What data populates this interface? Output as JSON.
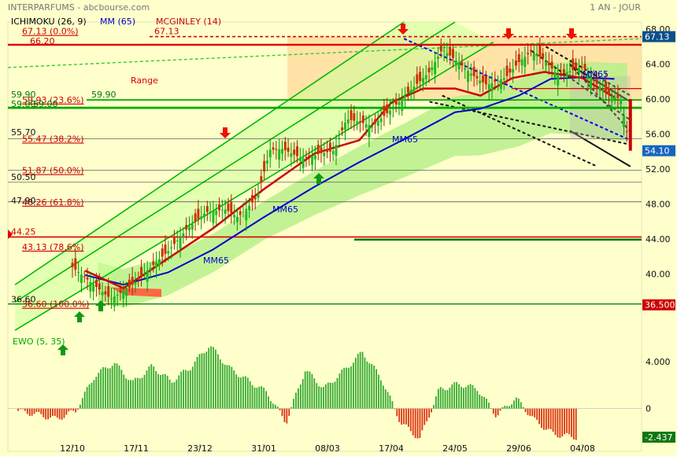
{
  "header": {
    "title": "INTERPARFUMS - abcbourse.com",
    "period": "1 AN - JOUR",
    "legend": [
      {
        "label": "ICHIMOKU (26, 9)",
        "color": "#000000"
      },
      {
        "label": "MM (65)",
        "color": "#0000cc"
      },
      {
        "label": "MCGINLEY (14)",
        "color": "#cc0000"
      }
    ]
  },
  "chart_data": [
    {
      "type": "line",
      "name": "price-panel",
      "ylim": [
        34.5,
        68.8
      ],
      "yticks": [
        "68.00",
        "64.00",
        "60.00",
        "56.00",
        "52.00",
        "48.00",
        "44.00",
        "40.00"
      ],
      "right_labels": [
        {
          "text": "67.13",
          "value": 67.13,
          "bg": "#0b4f8a"
        },
        {
          "text": "54.10",
          "value": 54.1,
          "bg": "#1565c0"
        },
        {
          "text": "36.500",
          "value": 36.5,
          "bg": "#cc0000"
        }
      ],
      "x_categories": [
        "12/10",
        "17/11",
        "23/12",
        "31/01",
        "08/03",
        "17/04",
        "24/05",
        "29/06",
        "04/08"
      ],
      "fibonacci": [
        {
          "label": "67.13 (0.0%)",
          "value": 67.13
        },
        {
          "label": "59.93 (23.6%)",
          "value": 59.93
        },
        {
          "label": "55.47 (38.2%)",
          "value": 55.47
        },
        {
          "label": "51.87 (50.0%)",
          "value": 51.87
        },
        {
          "label": "48.26 (61.8%)",
          "value": 48.26
        },
        {
          "label": "43.13 (78.6%)",
          "value": 43.13
        },
        {
          "label": "36.60 (100.0%)",
          "value": 36.6
        }
      ],
      "levels": [
        {
          "label": "66.20",
          "value": 66.2
        },
        {
          "label": "59.90",
          "value": 59.9
        },
        {
          "label": "59.00",
          "value": 59.0
        },
        {
          "label": "55.70",
          "value": 55.7
        },
        {
          "label": "50.50",
          "value": 50.5
        },
        {
          "label": "47.90",
          "value": 47.9
        },
        {
          "label": "44.25",
          "value": 44.25
        },
        {
          "label": "36.60",
          "value": 36.6
        }
      ],
      "inline_labels": [
        "67.13",
        "59.90",
        "59.00"
      ],
      "annotations": {
        "range": "Range",
        "mm65": "MM65"
      },
      "series": [
        {
          "name": "MM (65)",
          "color": "#0000cc",
          "points": [
            [
              0.2,
              39.9
            ],
            [
              0.8,
              38.8
            ],
            [
              1.5,
              40.2
            ],
            [
              2.2,
              42.8
            ],
            [
              3.0,
              46.5
            ],
            [
              3.8,
              50.0
            ],
            [
              4.5,
              52.8
            ],
            [
              5.2,
              55.4
            ],
            [
              6.0,
              58.5
            ],
            [
              6.4,
              58.9
            ],
            [
              7.0,
              60.4
            ],
            [
              7.5,
              62.3
            ],
            [
              8.0,
              62.5
            ],
            [
              8.5,
              62.3
            ]
          ]
        },
        {
          "name": "MCGINLEY (14)",
          "color": "#cc0000",
          "points": [
            [
              0.2,
              40.4
            ],
            [
              0.8,
              38.4
            ],
            [
              1.5,
              41.8
            ],
            [
              2.2,
              45.2
            ],
            [
              3.0,
              49.7
            ],
            [
              3.8,
              53.8
            ],
            [
              4.5,
              55.3
            ],
            [
              5.0,
              59.6
            ],
            [
              5.5,
              61.2
            ],
            [
              6.0,
              61.2
            ],
            [
              6.4,
              60.4
            ],
            [
              6.9,
              62.4
            ],
            [
              7.4,
              63.1
            ],
            [
              8.0,
              62.4
            ],
            [
              8.5,
              60.2
            ]
          ]
        },
        {
          "name": "Close",
          "color": "#009900",
          "points": [
            [
              0.0,
              40.8
            ],
            [
              0.3,
              39.0
            ],
            [
              0.6,
              37.2
            ],
            [
              0.9,
              38.5
            ],
            [
              1.2,
              40.6
            ],
            [
              1.5,
              42.6
            ],
            [
              1.8,
              45.2
            ],
            [
              2.1,
              47.1
            ],
            [
              2.4,
              47.4
            ],
            [
              2.6,
              46.5
            ],
            [
              2.9,
              48.8
            ],
            [
              3.1,
              54.2
            ],
            [
              3.3,
              54.3
            ],
            [
              3.6,
              53.2
            ],
            [
              3.9,
              53.8
            ],
            [
              4.1,
              54.1
            ],
            [
              4.3,
              57.7
            ],
            [
              4.5,
              57.4
            ],
            [
              4.7,
              56.9
            ],
            [
              5.0,
              58.8
            ],
            [
              5.3,
              61.0
            ],
            [
              5.6,
              63.1
            ],
            [
              5.8,
              65.7
            ],
            [
              6.1,
              63.9
            ],
            [
              6.3,
              62.6
            ],
            [
              6.5,
              61.6
            ],
            [
              6.8,
              62.5
            ],
            [
              7.0,
              64.2
            ],
            [
              7.2,
              65.5
            ],
            [
              7.4,
              64.5
            ],
            [
              7.6,
              62.8
            ],
            [
              7.8,
              63.2
            ],
            [
              8.0,
              63.7
            ],
            [
              8.2,
              61.9
            ],
            [
              8.4,
              60.5
            ],
            [
              8.6,
              60.0
            ],
            [
              8.75,
              54.1
            ]
          ]
        }
      ]
    },
    {
      "type": "bar",
      "name": "EWO (5, 35)",
      "title": "EWO (5, 35)",
      "ylim": [
        -2.7,
        6.0
      ],
      "yticks": [
        "4.000",
        "0"
      ],
      "last_value": "-2.437",
      "positive_color": "#33aa33",
      "negative_color": "#dd3311",
      "anchors": [
        [
          0.0,
          -0.2
        ],
        [
          0.3,
          -0.5
        ],
        [
          0.6,
          -0.9
        ],
        [
          0.9,
          -0.2
        ],
        [
          1.2,
          2.8
        ],
        [
          1.5,
          3.9
        ],
        [
          1.8,
          2.2
        ],
        [
          2.1,
          3.6
        ],
        [
          2.4,
          2.3
        ],
        [
          2.7,
          3.5
        ],
        [
          3.0,
          5.4
        ],
        [
          3.3,
          3.5
        ],
        [
          3.6,
          2.4
        ],
        [
          3.9,
          1.4
        ],
        [
          4.2,
          -1.2
        ],
        [
          4.5,
          3.3
        ],
        [
          4.8,
          1.7
        ],
        [
          5.1,
          3.2
        ],
        [
          5.4,
          4.8
        ],
        [
          5.7,
          2.5
        ],
        [
          6.0,
          -1.2
        ],
        [
          6.3,
          -2.6
        ],
        [
          6.6,
          1.6
        ],
        [
          6.9,
          2.1
        ],
        [
          7.2,
          1.7
        ],
        [
          7.5,
          -0.6
        ],
        [
          7.8,
          0.9
        ],
        [
          8.1,
          -1.0
        ],
        [
          8.4,
          -2.2
        ],
        [
          8.75,
          -2.437
        ]
      ]
    }
  ]
}
